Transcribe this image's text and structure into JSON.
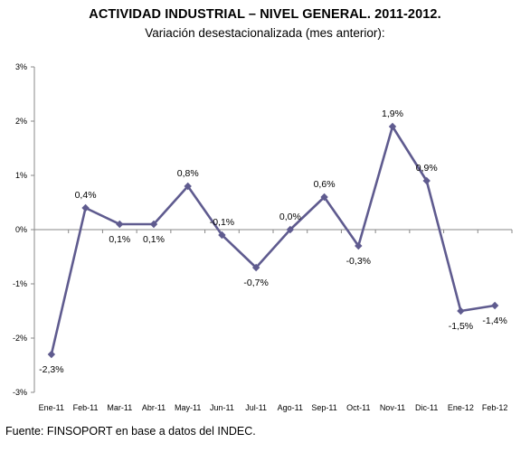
{
  "chart_data": {
    "type": "line",
    "title": "ACTIVIDAD INDUSTRIAL – NIVEL GENERAL. 2011-2012.",
    "subtitle": "Variación desestacionalizada (mes anterior):",
    "categories": [
      "Ene-11",
      "Feb-11",
      "Mar-11",
      "Abr-11",
      "May-11",
      "Jun-11",
      "Jul-11",
      "Ago-11",
      "Sep-11",
      "Oct-11",
      "Nov-11",
      "Dic-11",
      "Ene-12",
      "Feb-12"
    ],
    "series": [
      {
        "values": [
          -2.3,
          0.4,
          0.1,
          0.1,
          0.8,
          -0.1,
          -0.7,
          0.0,
          0.6,
          -0.3,
          1.9,
          0.9,
          -1.5,
          -1.4
        ],
        "labels": [
          "-2,3%",
          "0,4%",
          "0,1%",
          "0,1%",
          "0,8%",
          "-0,1%",
          "-0,7%",
          "0,0%",
          "0,6%",
          "-0,3%",
          "1,9%",
          "0,9%",
          "-1,5%",
          "-1,4%"
        ],
        "color": "#5f5b8f"
      }
    ],
    "ylim": [
      -3,
      3
    ],
    "yticks": [
      3,
      2,
      1,
      0,
      -1,
      -2,
      -3
    ],
    "ytick_labels": [
      "3%",
      "2%",
      "1%",
      "0%",
      "-1%",
      "-2%",
      "-3%"
    ],
    "grid": false,
    "legend": "none"
  },
  "footer": {
    "source": "Fuente: FINSOPORT en base a datos del INDEC."
  }
}
